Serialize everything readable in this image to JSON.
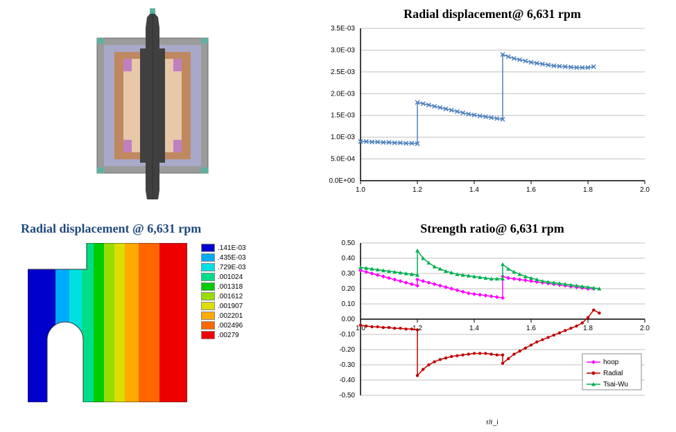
{
  "charts": {
    "disp_chart": {
      "title": "Radial displacement@ 6,631 rpm",
      "title_fontsize": 18,
      "xlim": [
        1.0,
        2.0
      ],
      "ylim": [
        0,
        0.0035
      ],
      "xticks": [
        1.0,
        1.2,
        1.4,
        1.6,
        1.8,
        2.0
      ],
      "xtick_labels": [
        "1.0",
        "1.2",
        "1.4",
        "1.6",
        "1.8",
        "2.0"
      ],
      "yticks": [
        0,
        0.0005,
        0.001,
        0.0015,
        0.002,
        0.0025,
        0.003,
        0.0035
      ],
      "ytick_labels": [
        "0.0E+00",
        "5.0E-04",
        "1.0E-03",
        "1.5E-03",
        "2.0E-03",
        "2.5E-03",
        "3.0E-03",
        "3.5E-03"
      ],
      "series_color": "#4f81bd",
      "marker": "x",
      "background": "#ffffff",
      "grid_color": "#bfbfbf",
      "data": [
        [
          1.0,
          0.0009
        ],
        [
          1.02,
          0.0009
        ],
        [
          1.04,
          0.00089
        ],
        [
          1.06,
          0.00089
        ],
        [
          1.08,
          0.00088
        ],
        [
          1.1,
          0.00088
        ],
        [
          1.12,
          0.00087
        ],
        [
          1.14,
          0.00087
        ],
        [
          1.16,
          0.00086
        ],
        [
          1.18,
          0.00086
        ],
        [
          1.2,
          0.00085
        ],
        [
          1.2,
          0.0018
        ],
        [
          1.22,
          0.00177
        ],
        [
          1.24,
          0.00174
        ],
        [
          1.26,
          0.00171
        ],
        [
          1.28,
          0.00168
        ],
        [
          1.3,
          0.00165
        ],
        [
          1.32,
          0.00162
        ],
        [
          1.34,
          0.00159
        ],
        [
          1.36,
          0.00156
        ],
        [
          1.38,
          0.00153
        ],
        [
          1.4,
          0.00151
        ],
        [
          1.42,
          0.00149
        ],
        [
          1.44,
          0.00147
        ],
        [
          1.46,
          0.00145
        ],
        [
          1.48,
          0.00143
        ],
        [
          1.5,
          0.00141
        ],
        [
          1.5,
          0.0029
        ],
        [
          1.52,
          0.00285
        ],
        [
          1.54,
          0.00281
        ],
        [
          1.56,
          0.00278
        ],
        [
          1.58,
          0.00275
        ],
        [
          1.6,
          0.00272
        ],
        [
          1.62,
          0.0027
        ],
        [
          1.64,
          0.00268
        ],
        [
          1.66,
          0.00266
        ],
        [
          1.68,
          0.00264
        ],
        [
          1.7,
          0.00263
        ],
        [
          1.72,
          0.00262
        ],
        [
          1.74,
          0.00261
        ],
        [
          1.76,
          0.0026
        ],
        [
          1.78,
          0.0026
        ],
        [
          1.8,
          0.0026
        ],
        [
          1.82,
          0.00262
        ]
      ]
    },
    "strength_chart": {
      "title": "Strength ratio@ 6,631 rpm",
      "title_fontsize": 18,
      "xlabel": "r/r_i",
      "xlim": [
        1.0,
        2.0
      ],
      "ylim": [
        -0.5,
        0.5
      ],
      "xticks": [
        1.0,
        1.2,
        1.4,
        1.6,
        1.8,
        2.0
      ],
      "xtick_labels": [
        "1.0",
        "1.2",
        "1.4",
        "1.6",
        "1.8",
        "2.0"
      ],
      "yticks": [
        -0.5,
        -0.4,
        -0.3,
        -0.2,
        -0.1,
        0,
        0.1,
        0.2,
        0.3,
        0.4,
        0.5
      ],
      "ytick_labels": [
        "-0.50",
        "-0.40",
        "-0.30",
        "-0.20",
        "-0.10",
        "0.00",
        "0.10",
        "0.20",
        "0.30",
        "0.40",
        "0.50"
      ],
      "background": "#ffffff",
      "grid_color": "#bfbfbf",
      "legend_position": "bottom-right",
      "series": [
        {
          "name": "hoop",
          "color": "#ff00ff",
          "marker": "diamond",
          "data": [
            [
              1.0,
              0.32
            ],
            [
              1.02,
              0.31
            ],
            [
              1.04,
              0.3
            ],
            [
              1.06,
              0.29
            ],
            [
              1.08,
              0.28
            ],
            [
              1.1,
              0.27
            ],
            [
              1.12,
              0.26
            ],
            [
              1.14,
              0.25
            ],
            [
              1.16,
              0.24
            ],
            [
              1.18,
              0.23
            ],
            [
              1.2,
              0.22
            ],
            [
              1.2,
              0.26
            ],
            [
              1.22,
              0.25
            ],
            [
              1.24,
              0.24
            ],
            [
              1.26,
              0.23
            ],
            [
              1.28,
              0.22
            ],
            [
              1.3,
              0.21
            ],
            [
              1.32,
              0.2
            ],
            [
              1.34,
              0.19
            ],
            [
              1.36,
              0.18
            ],
            [
              1.38,
              0.17
            ],
            [
              1.4,
              0.165
            ],
            [
              1.42,
              0.16
            ],
            [
              1.44,
              0.155
            ],
            [
              1.46,
              0.15
            ],
            [
              1.48,
              0.145
            ],
            [
              1.5,
              0.14
            ],
            [
              1.5,
              0.28
            ],
            [
              1.52,
              0.27
            ],
            [
              1.54,
              0.265
            ],
            [
              1.56,
              0.26
            ],
            [
              1.58,
              0.255
            ],
            [
              1.6,
              0.25
            ],
            [
              1.62,
              0.245
            ],
            [
              1.64,
              0.24
            ],
            [
              1.66,
              0.235
            ],
            [
              1.68,
              0.23
            ],
            [
              1.7,
              0.225
            ],
            [
              1.72,
              0.22
            ],
            [
              1.74,
              0.215
            ],
            [
              1.76,
              0.21
            ],
            [
              1.78,
              0.205
            ],
            [
              1.8,
              0.2
            ],
            [
              1.82,
              0.2
            ]
          ]
        },
        {
          "name": "Radial",
          "color": "#c00000",
          "marker": "circle",
          "data": [
            [
              1.0,
              -0.04
            ],
            [
              1.02,
              -0.045
            ],
            [
              1.04,
              -0.05
            ],
            [
              1.06,
              -0.05
            ],
            [
              1.08,
              -0.055
            ],
            [
              1.1,
              -0.055
            ],
            [
              1.12,
              -0.06
            ],
            [
              1.14,
              -0.06
            ],
            [
              1.16,
              -0.065
            ],
            [
              1.18,
              -0.065
            ],
            [
              1.2,
              -0.07
            ],
            [
              1.2,
              -0.37
            ],
            [
              1.22,
              -0.33
            ],
            [
              1.24,
              -0.3
            ],
            [
              1.26,
              -0.28
            ],
            [
              1.28,
              -0.265
            ],
            [
              1.3,
              -0.255
            ],
            [
              1.32,
              -0.245
            ],
            [
              1.34,
              -0.24
            ],
            [
              1.36,
              -0.235
            ],
            [
              1.38,
              -0.23
            ],
            [
              1.4,
              -0.225
            ],
            [
              1.42,
              -0.225
            ],
            [
              1.44,
              -0.225
            ],
            [
              1.46,
              -0.23
            ],
            [
              1.48,
              -0.235
            ],
            [
              1.5,
              -0.235
            ],
            [
              1.5,
              -0.29
            ],
            [
              1.52,
              -0.26
            ],
            [
              1.54,
              -0.23
            ],
            [
              1.56,
              -0.21
            ],
            [
              1.58,
              -0.19
            ],
            [
              1.6,
              -0.17
            ],
            [
              1.62,
              -0.15
            ],
            [
              1.64,
              -0.135
            ],
            [
              1.66,
              -0.12
            ],
            [
              1.68,
              -0.105
            ],
            [
              1.7,
              -0.09
            ],
            [
              1.72,
              -0.075
            ],
            [
              1.74,
              -0.06
            ],
            [
              1.76,
              -0.045
            ],
            [
              1.78,
              -0.025
            ],
            [
              1.8,
              0.01
            ],
            [
              1.82,
              0.06
            ],
            [
              1.84,
              0.04
            ]
          ]
        },
        {
          "name": "Tsai-Wu",
          "color": "#00b050",
          "marker": "triangle",
          "data": [
            [
              1.0,
              0.34
            ],
            [
              1.02,
              0.335
            ],
            [
              1.04,
              0.33
            ],
            [
              1.06,
              0.325
            ],
            [
              1.08,
              0.32
            ],
            [
              1.1,
              0.315
            ],
            [
              1.12,
              0.31
            ],
            [
              1.14,
              0.305
            ],
            [
              1.16,
              0.3
            ],
            [
              1.18,
              0.295
            ],
            [
              1.2,
              0.29
            ],
            [
              1.2,
              0.45
            ],
            [
              1.22,
              0.4
            ],
            [
              1.24,
              0.37
            ],
            [
              1.26,
              0.345
            ],
            [
              1.28,
              0.33
            ],
            [
              1.3,
              0.315
            ],
            [
              1.32,
              0.305
            ],
            [
              1.34,
              0.295
            ],
            [
              1.36,
              0.29
            ],
            [
              1.38,
              0.285
            ],
            [
              1.4,
              0.28
            ],
            [
              1.42,
              0.275
            ],
            [
              1.44,
              0.27
            ],
            [
              1.46,
              0.265
            ],
            [
              1.48,
              0.265
            ],
            [
              1.5,
              0.265
            ],
            [
              1.5,
              0.36
            ],
            [
              1.52,
              0.33
            ],
            [
              1.54,
              0.31
            ],
            [
              1.56,
              0.295
            ],
            [
              1.58,
              0.28
            ],
            [
              1.6,
              0.27
            ],
            [
              1.62,
              0.26
            ],
            [
              1.64,
              0.25
            ],
            [
              1.66,
              0.245
            ],
            [
              1.68,
              0.24
            ],
            [
              1.7,
              0.235
            ],
            [
              1.72,
              0.23
            ],
            [
              1.74,
              0.225
            ],
            [
              1.76,
              0.22
            ],
            [
              1.78,
              0.215
            ],
            [
              1.8,
              0.21
            ],
            [
              1.82,
              0.205
            ],
            [
              1.84,
              0.2
            ]
          ]
        }
      ]
    }
  },
  "fea_contour": {
    "title": "Radial displacement @ 6,631 rpm",
    "legend": [
      {
        "color": "#0000cc",
        "label": ".141E-03"
      },
      {
        "color": "#00aaff",
        "label": ".435E-03"
      },
      {
        "color": "#00e0e0",
        "label": ".729E-03"
      },
      {
        "color": "#00dd88",
        "label": ".001024"
      },
      {
        "color": "#00cc00",
        "label": ".001318"
      },
      {
        "color": "#99dd00",
        "label": ".001612"
      },
      {
        "color": "#dddd00",
        "label": ".001907"
      },
      {
        "color": "#ffaa00",
        "label": ".002201"
      },
      {
        "color": "#ff6600",
        "label": ".002496"
      },
      {
        "color": "#ee0000",
        "label": ".00279"
      }
    ]
  },
  "cad_colors": {
    "outer": "#9b9b9b",
    "shaft": "#404040",
    "ring1": "#a8a8c8",
    "ring2": "#c08860",
    "ring3": "#e8c8a8",
    "accent": "#c080c0",
    "teal": "#5fb0a0"
  }
}
